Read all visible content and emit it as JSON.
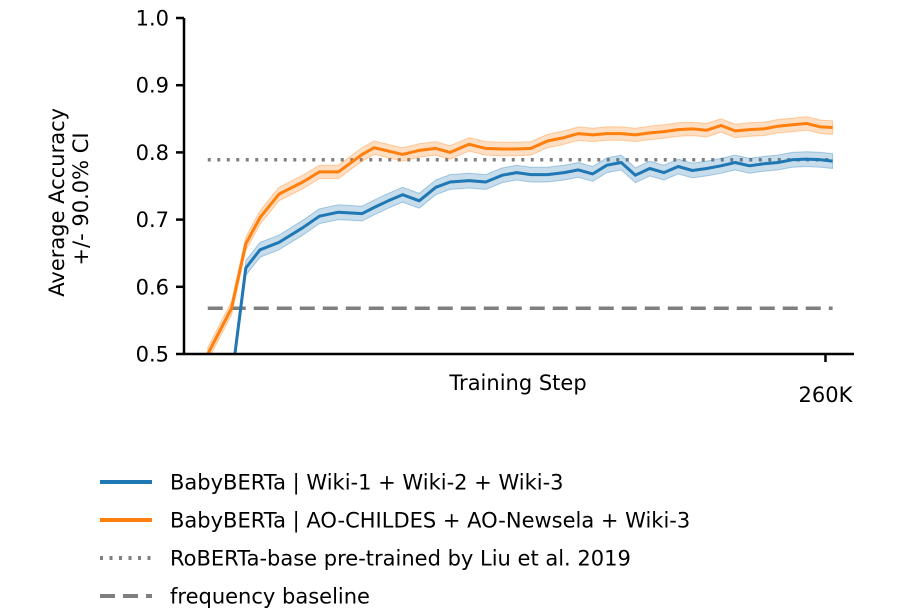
{
  "chart_data": {
    "type": "line",
    "title": "",
    "xlabel": "Training Step",
    "ylabel_lines": [
      "Average Accuracy",
      "+/- 90.0% CI"
    ],
    "xlim": [
      -10000,
      272000
    ],
    "ylim": [
      0.5,
      1.0
    ],
    "x_ticks": [
      {
        "value": 260000,
        "label": "260K"
      }
    ],
    "y_ticks": [
      {
        "value": 0.5,
        "label": "0.5"
      },
      {
        "value": 0.6,
        "label": "0.6"
      },
      {
        "value": 0.7,
        "label": "0.7"
      },
      {
        "value": 0.8,
        "label": "0.8"
      },
      {
        "value": 0.9,
        "label": "0.9"
      },
      {
        "value": 1.0,
        "label": "1.0"
      }
    ],
    "grid": false,
    "legend_position": "below",
    "x": [
      0,
      10000,
      16000,
      22000,
      30000,
      40000,
      47000,
      55000,
      65000,
      70000,
      76000,
      82000,
      89000,
      96000,
      102000,
      110000,
      117000,
      124000,
      130000,
      136000,
      143000,
      150000,
      156000,
      162000,
      168000,
      174000,
      180000,
      186000,
      192000,
      198000,
      204000,
      210000,
      216000,
      222000,
      228000,
      234000,
      240000,
      246000,
      252000,
      258000,
      263000
    ],
    "series": [
      {
        "name": "BabyBERTa | Wiki-1 + Wiki-2 + Wiki-3",
        "color": "#1f77b4",
        "line_style": "solid",
        "values": [
          0.38,
          0.46,
          0.628,
          0.655,
          0.666,
          0.688,
          0.705,
          0.711,
          0.709,
          0.718,
          0.728,
          0.737,
          0.728,
          0.748,
          0.756,
          0.758,
          0.756,
          0.766,
          0.77,
          0.767,
          0.767,
          0.77,
          0.774,
          0.768,
          0.781,
          0.785,
          0.766,
          0.776,
          0.77,
          0.779,
          0.773,
          0.776,
          0.78,
          0.785,
          0.78,
          0.783,
          0.785,
          0.789,
          0.79,
          0.789,
          0.787
        ],
        "ci_half_width": 0.011
      },
      {
        "name": "BabyBERTa | AO-CHILDES + AO-Newsela + Wiki-3",
        "color": "#ff7f0e",
        "line_style": "solid",
        "values": [
          0.5,
          0.568,
          0.664,
          0.703,
          0.738,
          0.756,
          0.771,
          0.771,
          0.797,
          0.807,
          0.802,
          0.797,
          0.803,
          0.806,
          0.8,
          0.812,
          0.806,
          0.805,
          0.805,
          0.806,
          0.817,
          0.822,
          0.828,
          0.826,
          0.828,
          0.828,
          0.826,
          0.829,
          0.831,
          0.834,
          0.835,
          0.833,
          0.84,
          0.832,
          0.834,
          0.835,
          0.839,
          0.841,
          0.843,
          0.838,
          0.837
        ],
        "ci_half_width": 0.01
      },
      {
        "name": "RoBERTa-base pre-trained by Liu et al. 2019",
        "color": "#7f7f7f",
        "line_style": "dotted",
        "constant": 0.789
      },
      {
        "name": "frequency baseline",
        "color": "#7f7f7f",
        "line_style": "dashed",
        "constant": 0.568
      }
    ]
  }
}
